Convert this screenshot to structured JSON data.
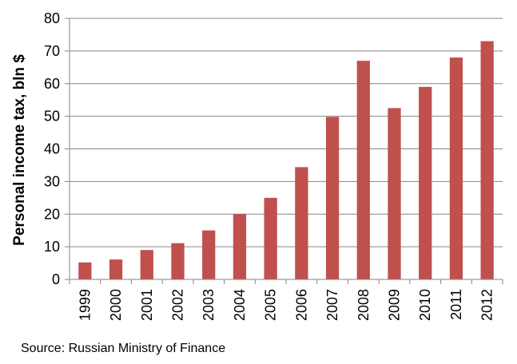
{
  "chart_data": {
    "type": "bar",
    "categories": [
      "1999",
      "2000",
      "2001",
      "2002",
      "2003",
      "2004",
      "2005",
      "2006",
      "2007",
      "2008",
      "2009",
      "2010",
      "2011",
      "2012"
    ],
    "values": [
      5.2,
      6.1,
      9,
      11.1,
      15,
      20,
      25,
      34.4,
      49.8,
      67,
      52.5,
      59,
      68,
      73
    ],
    "title": "",
    "xlabel": "",
    "ylabel": "Personal income tax, bln $",
    "ylim": [
      0,
      80
    ],
    "yticks": [
      0,
      10,
      20,
      30,
      40,
      50,
      60,
      70,
      80
    ],
    "grid": true,
    "bar_color": "#c0504d",
    "gridline_color": "#868686"
  },
  "footer": {
    "source": "Source: Russian Ministry of Finance"
  }
}
